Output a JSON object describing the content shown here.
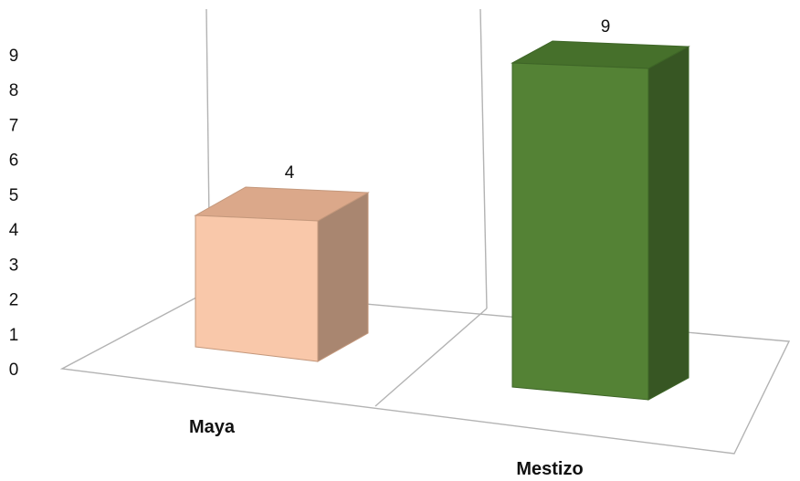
{
  "chart_data": {
    "type": "bar",
    "style": "3d-column",
    "categories": [
      "Maya",
      "Mestizo"
    ],
    "values": [
      4,
      9
    ],
    "data_labels": [
      "4",
      "9"
    ],
    "yticks": [
      "0",
      "1",
      "2",
      "3",
      "4",
      "5",
      "6",
      "7",
      "8",
      "9"
    ],
    "ylim": [
      0,
      9
    ],
    "title": "",
    "xlabel": "",
    "ylabel": "",
    "grid": true,
    "legend": "none",
    "colors": {
      "Maya": {
        "front": "#f9c8aa",
        "side": "#a98670",
        "top": "#dba88a",
        "edge": "#c4987c"
      },
      "Mestizo": {
        "front": "#548235",
        "side": "#375623",
        "top": "#46702b",
        "edge": "#3e6527"
      }
    }
  }
}
